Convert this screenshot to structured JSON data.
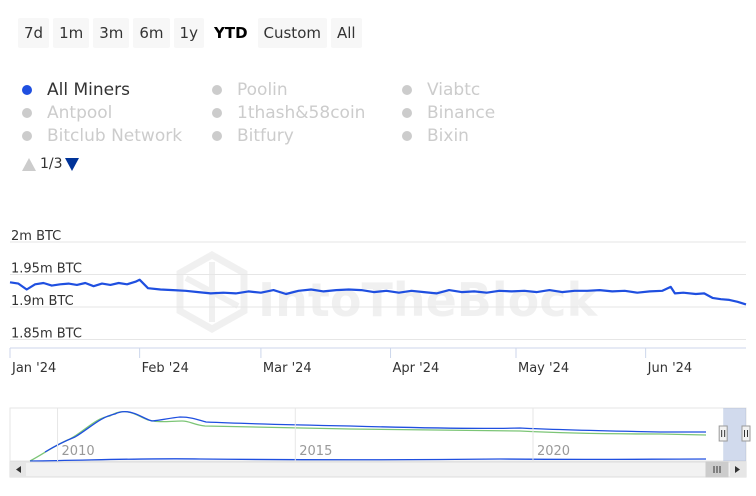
{
  "range_selector": {
    "buttons": [
      "7d",
      "1m",
      "3m",
      "6m",
      "1y",
      "YTD",
      "Custom",
      "All"
    ],
    "selected": "YTD"
  },
  "legend": {
    "items": [
      {
        "label": "All Miners",
        "active": true
      },
      {
        "label": "Poolin",
        "active": false
      },
      {
        "label": "Viabtc",
        "active": false
      },
      {
        "label": "Antpool",
        "active": false
      },
      {
        "label": "1thash&58coin",
        "active": false
      },
      {
        "label": "Binance",
        "active": false
      },
      {
        "label": "Bitclub Network",
        "active": false
      },
      {
        "label": "Bitfury",
        "active": false
      },
      {
        "label": "Bixin",
        "active": false
      }
    ],
    "page_label": "1/3"
  },
  "watermark": "IntoTheBlock",
  "colors": {
    "series": "#1f4fe0",
    "navigator_secondary": "#7cc576",
    "inactive": "#cccccc"
  },
  "chart_data": {
    "type": "line",
    "title": "",
    "ylabel": "",
    "xlabel": "",
    "y_ticks": [
      {
        "label": "2m BTC",
        "value": 2.0
      },
      {
        "label": "1.95m BTC",
        "value": 1.95
      },
      {
        "label": "1.9m BTC",
        "value": 1.9
      },
      {
        "label": "1.85m BTC",
        "value": 1.85
      }
    ],
    "ylim": [
      1.837,
      2.0
    ],
    "x_ticks": [
      {
        "label": "Jan '24",
        "value": "2024-01-01"
      },
      {
        "label": "Feb '24",
        "value": "2024-02-01"
      },
      {
        "label": "Mar '24",
        "value": "2024-03-01"
      },
      {
        "label": "Apr '24",
        "value": "2024-04-01"
      },
      {
        "label": "May '24",
        "value": "2024-05-01"
      },
      {
        "label": "Jun '24",
        "value": "2024-06-01"
      }
    ],
    "xlim": [
      "2024-01-01",
      "2024-06-25"
    ],
    "grid": true,
    "series": [
      {
        "name": "All Miners",
        "points": [
          [
            "2024-01-01",
            1.938
          ],
          [
            "2024-01-03",
            1.936
          ],
          [
            "2024-01-05",
            1.927
          ],
          [
            "2024-01-07",
            1.935
          ],
          [
            "2024-01-09",
            1.937
          ],
          [
            "2024-01-11",
            1.933
          ],
          [
            "2024-01-13",
            1.935
          ],
          [
            "2024-01-15",
            1.936
          ],
          [
            "2024-01-17",
            1.934
          ],
          [
            "2024-01-19",
            1.937
          ],
          [
            "2024-01-21",
            1.932
          ],
          [
            "2024-01-23",
            1.936
          ],
          [
            "2024-01-25",
            1.934
          ],
          [
            "2024-01-27",
            1.937
          ],
          [
            "2024-01-29",
            1.935
          ],
          [
            "2024-01-31",
            1.939
          ],
          [
            "2024-02-01",
            1.942
          ],
          [
            "2024-02-03",
            1.929
          ],
          [
            "2024-02-06",
            1.927
          ],
          [
            "2024-02-09",
            1.926
          ],
          [
            "2024-02-12",
            1.925
          ],
          [
            "2024-02-15",
            1.923
          ],
          [
            "2024-02-18",
            1.921
          ],
          [
            "2024-02-21",
            1.922
          ],
          [
            "2024-02-24",
            1.921
          ],
          [
            "2024-02-27",
            1.924
          ],
          [
            "2024-03-01",
            1.922
          ],
          [
            "2024-03-04",
            1.926
          ],
          [
            "2024-03-07",
            1.92
          ],
          [
            "2024-03-10",
            1.925
          ],
          [
            "2024-03-13",
            1.927
          ],
          [
            "2024-03-16",
            1.924
          ],
          [
            "2024-03-19",
            1.926
          ],
          [
            "2024-03-22",
            1.927
          ],
          [
            "2024-03-25",
            1.926
          ],
          [
            "2024-03-28",
            1.923
          ],
          [
            "2024-03-31",
            1.925
          ],
          [
            "2024-04-03",
            1.922
          ],
          [
            "2024-04-06",
            1.925
          ],
          [
            "2024-04-09",
            1.923
          ],
          [
            "2024-04-12",
            1.921
          ],
          [
            "2024-04-15",
            1.926
          ],
          [
            "2024-04-18",
            1.923
          ],
          [
            "2024-04-21",
            1.924
          ],
          [
            "2024-04-24",
            1.922
          ],
          [
            "2024-04-27",
            1.925
          ],
          [
            "2024-04-30",
            1.924
          ],
          [
            "2024-05-03",
            1.925
          ],
          [
            "2024-05-06",
            1.923
          ],
          [
            "2024-05-09",
            1.926
          ],
          [
            "2024-05-12",
            1.923
          ],
          [
            "2024-05-15",
            1.925
          ],
          [
            "2024-05-18",
            1.925
          ],
          [
            "2024-05-21",
            1.926
          ],
          [
            "2024-05-24",
            1.924
          ],
          [
            "2024-05-27",
            1.925
          ],
          [
            "2024-05-30",
            1.922
          ],
          [
            "2024-06-02",
            1.924
          ],
          [
            "2024-06-05",
            1.925
          ],
          [
            "2024-06-07",
            1.931
          ],
          [
            "2024-06-08",
            1.921
          ],
          [
            "2024-06-10",
            1.922
          ],
          [
            "2024-06-13",
            1.92
          ],
          [
            "2024-06-15",
            1.921
          ],
          [
            "2024-06-17",
            1.914
          ],
          [
            "2024-06-19",
            1.912
          ],
          [
            "2024-06-21",
            1.911
          ],
          [
            "2024-06-23",
            1.908
          ],
          [
            "2024-06-25",
            1.904
          ]
        ]
      }
    ],
    "navigator": {
      "x_ticks": [
        {
          "label": "2010",
          "value": 2010
        },
        {
          "label": "2015",
          "value": 2015
        },
        {
          "label": "2020",
          "value": 2020
        }
      ],
      "xlim": [
        2009.0,
        2024.48
      ],
      "ylim": [
        0,
        1
      ],
      "selected_range": [
        2024.0,
        2024.48
      ]
    }
  }
}
